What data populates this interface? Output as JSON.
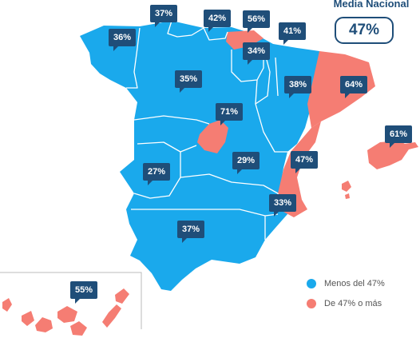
{
  "national": {
    "title": "Media Nacional",
    "value": "47%"
  },
  "colors": {
    "below": "#1aa9ec",
    "above": "#f57d73",
    "badge": "#1f4e79",
    "border": "#ffffff"
  },
  "legend": [
    {
      "label": "Menos del 47%",
      "color": "#1aa9ec"
    },
    {
      "label": "De 47% o más",
      "color": "#f57d73"
    }
  ],
  "regions": [
    {
      "value": "36%",
      "category": "below"
    },
    {
      "value": "37%",
      "category": "below"
    },
    {
      "value": "42%",
      "category": "below"
    },
    {
      "value": "56%",
      "category": "above"
    },
    {
      "value": "41%",
      "category": "below"
    },
    {
      "value": "34%",
      "category": "below"
    },
    {
      "value": "35%",
      "category": "below"
    },
    {
      "value": "38%",
      "category": "below"
    },
    {
      "value": "64%",
      "category": "above"
    },
    {
      "value": "71%",
      "category": "above"
    },
    {
      "value": "61%",
      "category": "above"
    },
    {
      "value": "27%",
      "category": "below"
    },
    {
      "value": "29%",
      "category": "below"
    },
    {
      "value": "47%",
      "category": "above"
    },
    {
      "value": "33%",
      "category": "below"
    },
    {
      "value": "37%",
      "category": "below"
    },
    {
      "value": "55%",
      "category": "above"
    }
  ]
}
